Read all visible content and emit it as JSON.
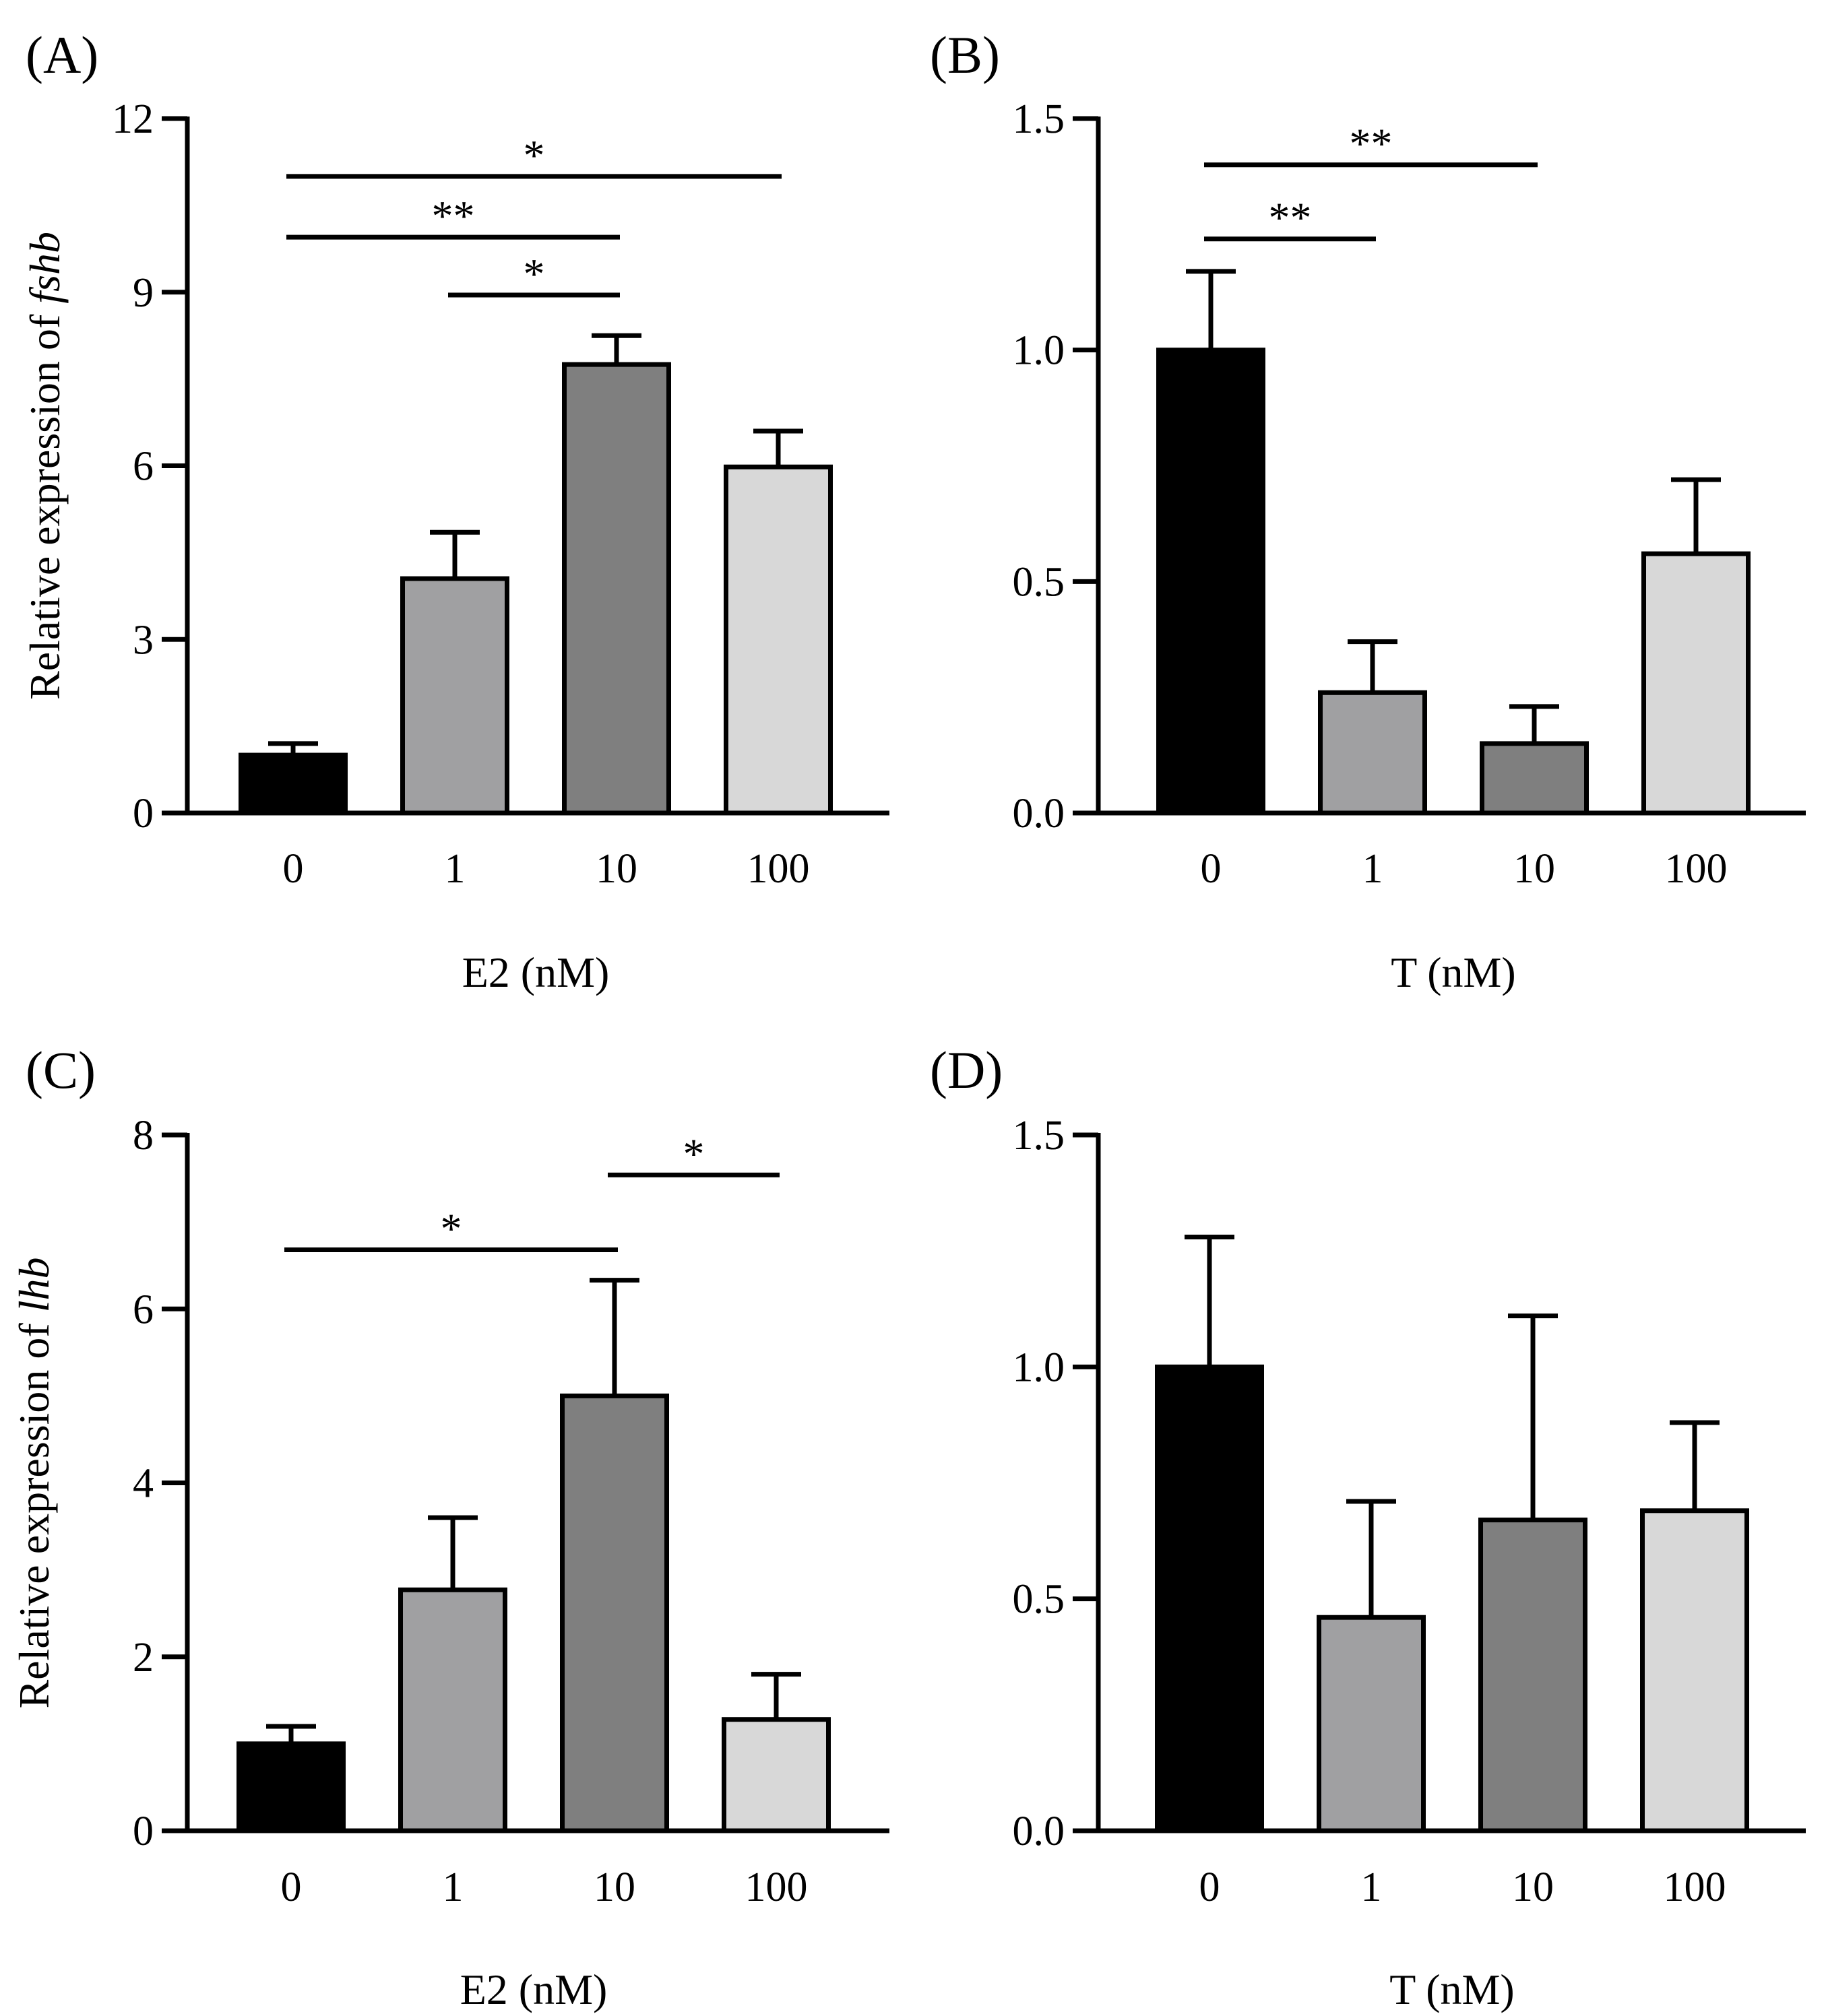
{
  "figure": {
    "ylabel_prefix": "Relative expression of ",
    "colors": {
      "bar_0": "#000000",
      "bar_1": "#a0a0a2",
      "bar_10": "#7f7f7f",
      "bar_100": "#d8d8d8",
      "stroke": "#000000"
    }
  },
  "chart_data": [
    {
      "panel": "(A)",
      "type": "bar",
      "categories": [
        "0",
        "1",
        "10",
        "100"
      ],
      "values": [
        1.0,
        4.05,
        7.75,
        5.98
      ],
      "errors": [
        0.2,
        0.8,
        0.5,
        0.62
      ],
      "xlabel": "E2 (nM)",
      "ylabel_gene": "fshb",
      "ylim": [
        0,
        12
      ],
      "yticks": [
        0,
        3,
        6,
        9,
        12
      ],
      "ytick_labels": [
        "0",
        "3",
        "6",
        "9",
        "12"
      ],
      "significance": [
        {
          "from": 0,
          "to": 3,
          "y": 11.0,
          "label": "*"
        },
        {
          "from": 0,
          "to": 2,
          "y": 9.95,
          "label": "**"
        },
        {
          "from": 1,
          "to": 2,
          "y": 8.95,
          "label": "*"
        }
      ]
    },
    {
      "panel": "(B)",
      "type": "bar",
      "categories": [
        "0",
        "1",
        "10",
        "100"
      ],
      "values": [
        1.0,
        0.26,
        0.15,
        0.56
      ],
      "errors": [
        0.17,
        0.11,
        0.08,
        0.16
      ],
      "xlabel": "T (nM)",
      "ylabel_gene": "",
      "ylim": [
        0,
        1.5
      ],
      "yticks": [
        0,
        0.5,
        1.0,
        1.5
      ],
      "ytick_labels": [
        "0.0",
        "0.5",
        "1.0",
        "1.5"
      ],
      "significance": [
        {
          "from": 0,
          "to": 2,
          "y": 1.4,
          "label": "**"
        },
        {
          "from": 0,
          "to": 1,
          "y": 1.24,
          "label": "**"
        }
      ]
    },
    {
      "panel": "(C)",
      "type": "bar",
      "categories": [
        "0",
        "1",
        "10",
        "100"
      ],
      "values": [
        1.0,
        2.77,
        5.0,
        1.28
      ],
      "errors": [
        0.2,
        0.83,
        1.33,
        0.52
      ],
      "xlabel": "E2 (nM)",
      "ylabel_gene": "lhb",
      "ylim": [
        0,
        8
      ],
      "yticks": [
        0,
        2,
        4,
        6,
        8
      ],
      "ytick_labels": [
        "0",
        "2",
        "4",
        "6",
        "8"
      ],
      "significance": [
        {
          "from": 0,
          "to": 2,
          "y": 6.68,
          "label": "*"
        },
        {
          "from": 2,
          "to": 3,
          "y": 7.54,
          "label": "*"
        }
      ]
    },
    {
      "panel": "(D)",
      "type": "bar",
      "categories": [
        "0",
        "1",
        "10",
        "100"
      ],
      "values": [
        1.0,
        0.46,
        0.67,
        0.69
      ],
      "errors": [
        0.28,
        0.25,
        0.44,
        0.19
      ],
      "xlabel": "T (nM)",
      "ylabel_gene": "",
      "ylim": [
        0,
        1.5
      ],
      "yticks": [
        0,
        0.5,
        1.0,
        1.5
      ],
      "ytick_labels": [
        "0.0",
        "0.5",
        "1.0",
        "1.5"
      ],
      "significance": []
    }
  ]
}
